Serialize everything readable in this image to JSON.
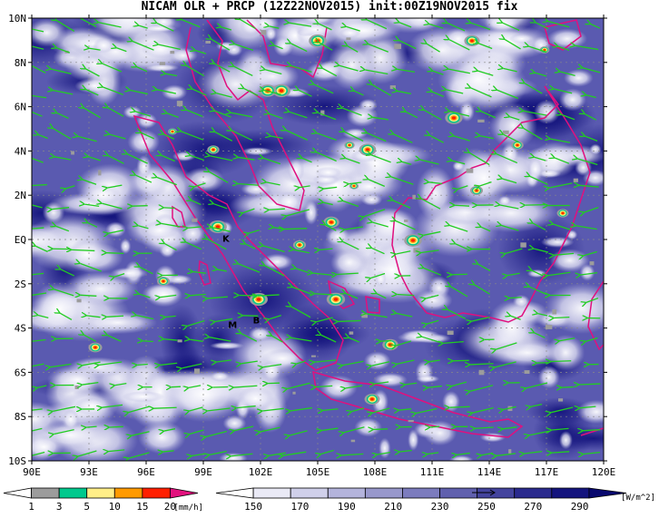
{
  "title": "NICAM OLR + PRCP (12Z22NOV2015) init:00Z19NOV2015 fix",
  "lat_ticks": [
    "10N",
    "8N",
    "6N",
    "4N",
    "2N",
    "EQ",
    "2S",
    "4S",
    "6S",
    "8S",
    "10S"
  ],
  "lon_ticks": [
    "90E",
    "93E",
    "96E",
    "99E",
    "102E",
    "105E",
    "108E",
    "111E",
    "114E",
    "117E",
    "120E"
  ],
  "map_extent": {
    "lon": [
      90,
      120
    ],
    "lat": [
      -10,
      10
    ]
  },
  "stations": [
    {
      "label": "K",
      "lon": 100.0,
      "lat": -0.1
    },
    {
      "label": "M",
      "lon": 100.3,
      "lat": -4.0
    },
    {
      "label": "B",
      "lon": 101.6,
      "lat": -3.8
    }
  ],
  "precip_colorbar": {
    "labels": [
      "1",
      "3",
      "5",
      "10",
      "15",
      "20"
    ],
    "unit": "[mm/h]",
    "colors": [
      "#ffffff",
      "#9c9c9c",
      "#00c98d",
      "#ffee88",
      "#ff9a00",
      "#ff1f00",
      "#e2117e"
    ]
  },
  "olr_colorbar": {
    "labels": [
      "150",
      "170",
      "190",
      "210",
      "230",
      "250",
      "270",
      "290"
    ],
    "unit": "[W/m^2]",
    "colors": [
      "#ffffff",
      "#eaeaf6",
      "#d0d0ea",
      "#b4b4dc",
      "#9898cc",
      "#7c7cbe",
      "#6060ae",
      "#44449e",
      "#2a2a8e",
      "#14147e",
      "#08086e"
    ]
  },
  "colors": {
    "coast": "#e0107f",
    "wind": "#22cc22",
    "plot_bg": "#4a4aa8"
  }
}
